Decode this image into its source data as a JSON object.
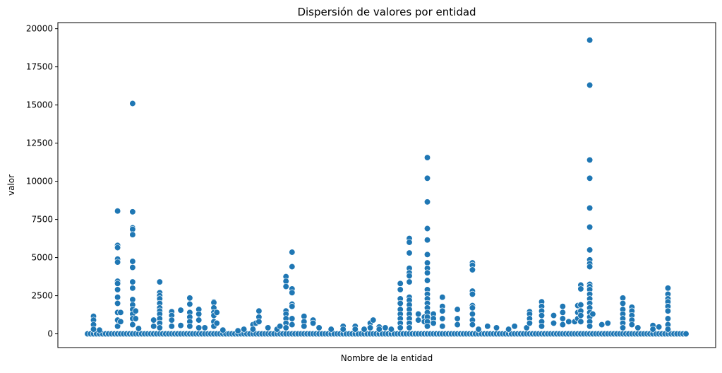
{
  "chart_data": {
    "type": "scatter",
    "title": "Dispersión de valores por entidad",
    "xlabel": "Nombre de la entidad",
    "ylabel": "valor",
    "ylim": [
      -900,
      20400
    ],
    "yticks": [
      0,
      2500,
      5000,
      7500,
      10000,
      12500,
      15000,
      17500,
      20000
    ],
    "ytick_labels": [
      "0",
      "2500",
      "5000",
      "7500",
      "10000",
      "12500",
      "15000",
      "17500",
      "20000"
    ],
    "x_axis_ticks": "none",
    "grid": false,
    "legend": "none",
    "marker_color": "#1f77b4",
    "num_entities": 200,
    "baseline_value": 0,
    "series": [
      {
        "points": [
          {
            "x": 2,
            "y": 1150
          },
          {
            "x": 2,
            "y": 900
          },
          {
            "x": 2,
            "y": 600
          },
          {
            "x": 2,
            "y": 300
          },
          {
            "x": 4,
            "y": 250
          },
          {
            "x": 10,
            "y": 8050
          },
          {
            "x": 10,
            "y": 5800
          },
          {
            "x": 10,
            "y": 5650
          },
          {
            "x": 10,
            "y": 4900
          },
          {
            "x": 10,
            "y": 4700
          },
          {
            "x": 10,
            "y": 3450
          },
          {
            "x": 10,
            "y": 3300
          },
          {
            "x": 10,
            "y": 2900
          },
          {
            "x": 10,
            "y": 2400
          },
          {
            "x": 10,
            "y": 2000
          },
          {
            "x": 10,
            "y": 1400
          },
          {
            "x": 10,
            "y": 900
          },
          {
            "x": 10,
            "y": 500
          },
          {
            "x": 11,
            "y": 1400
          },
          {
            "x": 11,
            "y": 800
          },
          {
            "x": 15,
            "y": 15100
          },
          {
            "x": 15,
            "y": 8000
          },
          {
            "x": 15,
            "y": 6950
          },
          {
            "x": 15,
            "y": 6850
          },
          {
            "x": 15,
            "y": 6500
          },
          {
            "x": 15,
            "y": 4750
          },
          {
            "x": 15,
            "y": 4350
          },
          {
            "x": 15,
            "y": 3400
          },
          {
            "x": 15,
            "y": 3000
          },
          {
            "x": 15,
            "y": 2250
          },
          {
            "x": 15,
            "y": 1900
          },
          {
            "x": 15,
            "y": 1600
          },
          {
            "x": 15,
            "y": 1300
          },
          {
            "x": 15,
            "y": 1000
          },
          {
            "x": 15,
            "y": 600
          },
          {
            "x": 16,
            "y": 1500
          },
          {
            "x": 16,
            "y": 1000
          },
          {
            "x": 17,
            "y": 350
          },
          {
            "x": 22,
            "y": 900
          },
          {
            "x": 22,
            "y": 500
          },
          {
            "x": 24,
            "y": 3400
          },
          {
            "x": 24,
            "y": 2700
          },
          {
            "x": 24,
            "y": 2500
          },
          {
            "x": 24,
            "y": 2300
          },
          {
            "x": 24,
            "y": 2000
          },
          {
            "x": 24,
            "y": 1700
          },
          {
            "x": 24,
            "y": 1500
          },
          {
            "x": 24,
            "y": 1300
          },
          {
            "x": 24,
            "y": 1000
          },
          {
            "x": 24,
            "y": 700
          },
          {
            "x": 24,
            "y": 400
          },
          {
            "x": 28,
            "y": 1450
          },
          {
            "x": 28,
            "y": 1200
          },
          {
            "x": 28,
            "y": 900
          },
          {
            "x": 28,
            "y": 500
          },
          {
            "x": 31,
            "y": 1550
          },
          {
            "x": 31,
            "y": 550
          },
          {
            "x": 34,
            "y": 2350
          },
          {
            "x": 34,
            "y": 1950
          },
          {
            "x": 34,
            "y": 1400
          },
          {
            "x": 34,
            "y": 1100
          },
          {
            "x": 34,
            "y": 800
          },
          {
            "x": 34,
            "y": 500
          },
          {
            "x": 37,
            "y": 1600
          },
          {
            "x": 37,
            "y": 1300
          },
          {
            "x": 37,
            "y": 900
          },
          {
            "x": 37,
            "y": 400
          },
          {
            "x": 39,
            "y": 400
          },
          {
            "x": 42,
            "y": 2100
          },
          {
            "x": 42,
            "y": 2050
          },
          {
            "x": 42,
            "y": 1700
          },
          {
            "x": 42,
            "y": 1400
          },
          {
            "x": 42,
            "y": 1200
          },
          {
            "x": 42,
            "y": 800
          },
          {
            "x": 42,
            "y": 500
          },
          {
            "x": 43,
            "y": 1400
          },
          {
            "x": 43,
            "y": 700
          },
          {
            "x": 45,
            "y": 250
          },
          {
            "x": 50,
            "y": 200
          },
          {
            "x": 52,
            "y": 300
          },
          {
            "x": 55,
            "y": 600
          },
          {
            "x": 55,
            "y": 300
          },
          {
            "x": 56,
            "y": 700
          },
          {
            "x": 57,
            "y": 1500
          },
          {
            "x": 57,
            "y": 1100
          },
          {
            "x": 57,
            "y": 800
          },
          {
            "x": 60,
            "y": 400
          },
          {
            "x": 63,
            "y": 300
          },
          {
            "x": 64,
            "y": 500
          },
          {
            "x": 66,
            "y": 3750
          },
          {
            "x": 66,
            "y": 3450
          },
          {
            "x": 66,
            "y": 3100
          },
          {
            "x": 66,
            "y": 1500
          },
          {
            "x": 66,
            "y": 1300
          },
          {
            "x": 66,
            "y": 1000
          },
          {
            "x": 66,
            "y": 700
          },
          {
            "x": 66,
            "y": 400
          },
          {
            "x": 68,
            "y": 5350
          },
          {
            "x": 68,
            "y": 4400
          },
          {
            "x": 68,
            "y": 2950
          },
          {
            "x": 68,
            "y": 2700
          },
          {
            "x": 68,
            "y": 1950
          },
          {
            "x": 68,
            "y": 1800
          },
          {
            "x": 68,
            "y": 1000
          },
          {
            "x": 68,
            "y": 600
          },
          {
            "x": 72,
            "y": 1150
          },
          {
            "x": 72,
            "y": 800
          },
          {
            "x": 72,
            "y": 500
          },
          {
            "x": 75,
            "y": 900
          },
          {
            "x": 75,
            "y": 700
          },
          {
            "x": 77,
            "y": 400
          },
          {
            "x": 81,
            "y": 300
          },
          {
            "x": 85,
            "y": 500
          },
          {
            "x": 85,
            "y": 300
          },
          {
            "x": 89,
            "y": 500
          },
          {
            "x": 89,
            "y": 300
          },
          {
            "x": 92,
            "y": 300
          },
          {
            "x": 94,
            "y": 700
          },
          {
            "x": 94,
            "y": 400
          },
          {
            "x": 95,
            "y": 900
          },
          {
            "x": 97,
            "y": 450
          },
          {
            "x": 97,
            "y": 300
          },
          {
            "x": 99,
            "y": 400
          },
          {
            "x": 101,
            "y": 300
          },
          {
            "x": 104,
            "y": 3300
          },
          {
            "x": 104,
            "y": 2900
          },
          {
            "x": 104,
            "y": 2300
          },
          {
            "x": 104,
            "y": 2000
          },
          {
            "x": 104,
            "y": 1600
          },
          {
            "x": 104,
            "y": 1300
          },
          {
            "x": 104,
            "y": 1000
          },
          {
            "x": 104,
            "y": 700
          },
          {
            "x": 104,
            "y": 400
          },
          {
            "x": 107,
            "y": 6250
          },
          {
            "x": 107,
            "y": 6000
          },
          {
            "x": 107,
            "y": 5300
          },
          {
            "x": 107,
            "y": 4300
          },
          {
            "x": 107,
            "y": 4000
          },
          {
            "x": 107,
            "y": 3800
          },
          {
            "x": 107,
            "y": 3400
          },
          {
            "x": 107,
            "y": 2400
          },
          {
            "x": 107,
            "y": 2200
          },
          {
            "x": 107,
            "y": 1900
          },
          {
            "x": 107,
            "y": 1600
          },
          {
            "x": 107,
            "y": 1300
          },
          {
            "x": 107,
            "y": 1000
          },
          {
            "x": 107,
            "y": 700
          },
          {
            "x": 107,
            "y": 400
          },
          {
            "x": 110,
            "y": 1300
          },
          {
            "x": 110,
            "y": 900
          },
          {
            "x": 112,
            "y": 1100
          },
          {
            "x": 112,
            "y": 800
          },
          {
            "x": 113,
            "y": 11550
          },
          {
            "x": 113,
            "y": 10200
          },
          {
            "x": 113,
            "y": 8650
          },
          {
            "x": 113,
            "y": 6900
          },
          {
            "x": 113,
            "y": 6150
          },
          {
            "x": 113,
            "y": 5200
          },
          {
            "x": 113,
            "y": 4650
          },
          {
            "x": 113,
            "y": 4300
          },
          {
            "x": 113,
            "y": 4000
          },
          {
            "x": 113,
            "y": 3500
          },
          {
            "x": 113,
            "y": 2900
          },
          {
            "x": 113,
            "y": 2600
          },
          {
            "x": 113,
            "y": 2300
          },
          {
            "x": 113,
            "y": 2000
          },
          {
            "x": 113,
            "y": 1700
          },
          {
            "x": 113,
            "y": 1400
          },
          {
            "x": 113,
            "y": 1100
          },
          {
            "x": 113,
            "y": 800
          },
          {
            "x": 113,
            "y": 500
          },
          {
            "x": 115,
            "y": 1300
          },
          {
            "x": 115,
            "y": 1000
          },
          {
            "x": 115,
            "y": 700
          },
          {
            "x": 118,
            "y": 2400
          },
          {
            "x": 118,
            "y": 1800
          },
          {
            "x": 118,
            "y": 1500
          },
          {
            "x": 118,
            "y": 1000
          },
          {
            "x": 118,
            "y": 500
          },
          {
            "x": 123,
            "y": 1600
          },
          {
            "x": 123,
            "y": 1000
          },
          {
            "x": 123,
            "y": 600
          },
          {
            "x": 128,
            "y": 4650
          },
          {
            "x": 128,
            "y": 4500
          },
          {
            "x": 128,
            "y": 4200
          },
          {
            "x": 128,
            "y": 2800
          },
          {
            "x": 128,
            "y": 2600
          },
          {
            "x": 128,
            "y": 1850
          },
          {
            "x": 128,
            "y": 1700
          },
          {
            "x": 128,
            "y": 1300
          },
          {
            "x": 128,
            "y": 900
          },
          {
            "x": 128,
            "y": 600
          },
          {
            "x": 130,
            "y": 300
          },
          {
            "x": 133,
            "y": 500
          },
          {
            "x": 136,
            "y": 400
          },
          {
            "x": 140,
            "y": 300
          },
          {
            "x": 142,
            "y": 500
          },
          {
            "x": 146,
            "y": 400
          },
          {
            "x": 147,
            "y": 1450
          },
          {
            "x": 147,
            "y": 1300
          },
          {
            "x": 147,
            "y": 1000
          },
          {
            "x": 147,
            "y": 700
          },
          {
            "x": 151,
            "y": 2100
          },
          {
            "x": 151,
            "y": 1800
          },
          {
            "x": 151,
            "y": 1500
          },
          {
            "x": 151,
            "y": 1200
          },
          {
            "x": 151,
            "y": 800
          },
          {
            "x": 151,
            "y": 500
          },
          {
            "x": 155,
            "y": 1200
          },
          {
            "x": 155,
            "y": 700
          },
          {
            "x": 158,
            "y": 1800
          },
          {
            "x": 158,
            "y": 1400
          },
          {
            "x": 158,
            "y": 1000
          },
          {
            "x": 158,
            "y": 600
          },
          {
            "x": 160,
            "y": 800
          },
          {
            "x": 162,
            "y": 800
          },
          {
            "x": 163,
            "y": 1850
          },
          {
            "x": 163,
            "y": 1400
          },
          {
            "x": 163,
            "y": 1000
          },
          {
            "x": 164,
            "y": 3200
          },
          {
            "x": 164,
            "y": 2950
          },
          {
            "x": 164,
            "y": 1900
          },
          {
            "x": 164,
            "y": 1500
          },
          {
            "x": 164,
            "y": 1200
          },
          {
            "x": 164,
            "y": 800
          },
          {
            "x": 167,
            "y": 19250
          },
          {
            "x": 167,
            "y": 16300
          },
          {
            "x": 167,
            "y": 11400
          },
          {
            "x": 167,
            "y": 10200
          },
          {
            "x": 167,
            "y": 8250
          },
          {
            "x": 167,
            "y": 7000
          },
          {
            "x": 167,
            "y": 5500
          },
          {
            "x": 167,
            "y": 4850
          },
          {
            "x": 167,
            "y": 4600
          },
          {
            "x": 167,
            "y": 4400
          },
          {
            "x": 167,
            "y": 3250
          },
          {
            "x": 167,
            "y": 3100
          },
          {
            "x": 167,
            "y": 2900
          },
          {
            "x": 167,
            "y": 2600
          },
          {
            "x": 167,
            "y": 2300
          },
          {
            "x": 167,
            "y": 2000
          },
          {
            "x": 167,
            "y": 1700
          },
          {
            "x": 167,
            "y": 1400
          },
          {
            "x": 167,
            "y": 1100
          },
          {
            "x": 167,
            "y": 800
          },
          {
            "x": 167,
            "y": 500
          },
          {
            "x": 168,
            "y": 1300
          },
          {
            "x": 171,
            "y": 600
          },
          {
            "x": 173,
            "y": 700
          },
          {
            "x": 178,
            "y": 2350
          },
          {
            "x": 178,
            "y": 2000
          },
          {
            "x": 178,
            "y": 1600
          },
          {
            "x": 178,
            "y": 1300
          },
          {
            "x": 178,
            "y": 1000
          },
          {
            "x": 178,
            "y": 700
          },
          {
            "x": 178,
            "y": 400
          },
          {
            "x": 181,
            "y": 1750
          },
          {
            "x": 181,
            "y": 1500
          },
          {
            "x": 181,
            "y": 1200
          },
          {
            "x": 181,
            "y": 900
          },
          {
            "x": 181,
            "y": 600
          },
          {
            "x": 183,
            "y": 400
          },
          {
            "x": 188,
            "y": 550
          },
          {
            "x": 188,
            "y": 300
          },
          {
            "x": 190,
            "y": 450
          },
          {
            "x": 193,
            "y": 3000
          },
          {
            "x": 193,
            "y": 2600
          },
          {
            "x": 193,
            "y": 2300
          },
          {
            "x": 193,
            "y": 2100
          },
          {
            "x": 193,
            "y": 1800
          },
          {
            "x": 193,
            "y": 1500
          },
          {
            "x": 193,
            "y": 1000
          },
          {
            "x": 193,
            "y": 600
          },
          {
            "x": 193,
            "y": 300
          }
        ]
      }
    ]
  }
}
